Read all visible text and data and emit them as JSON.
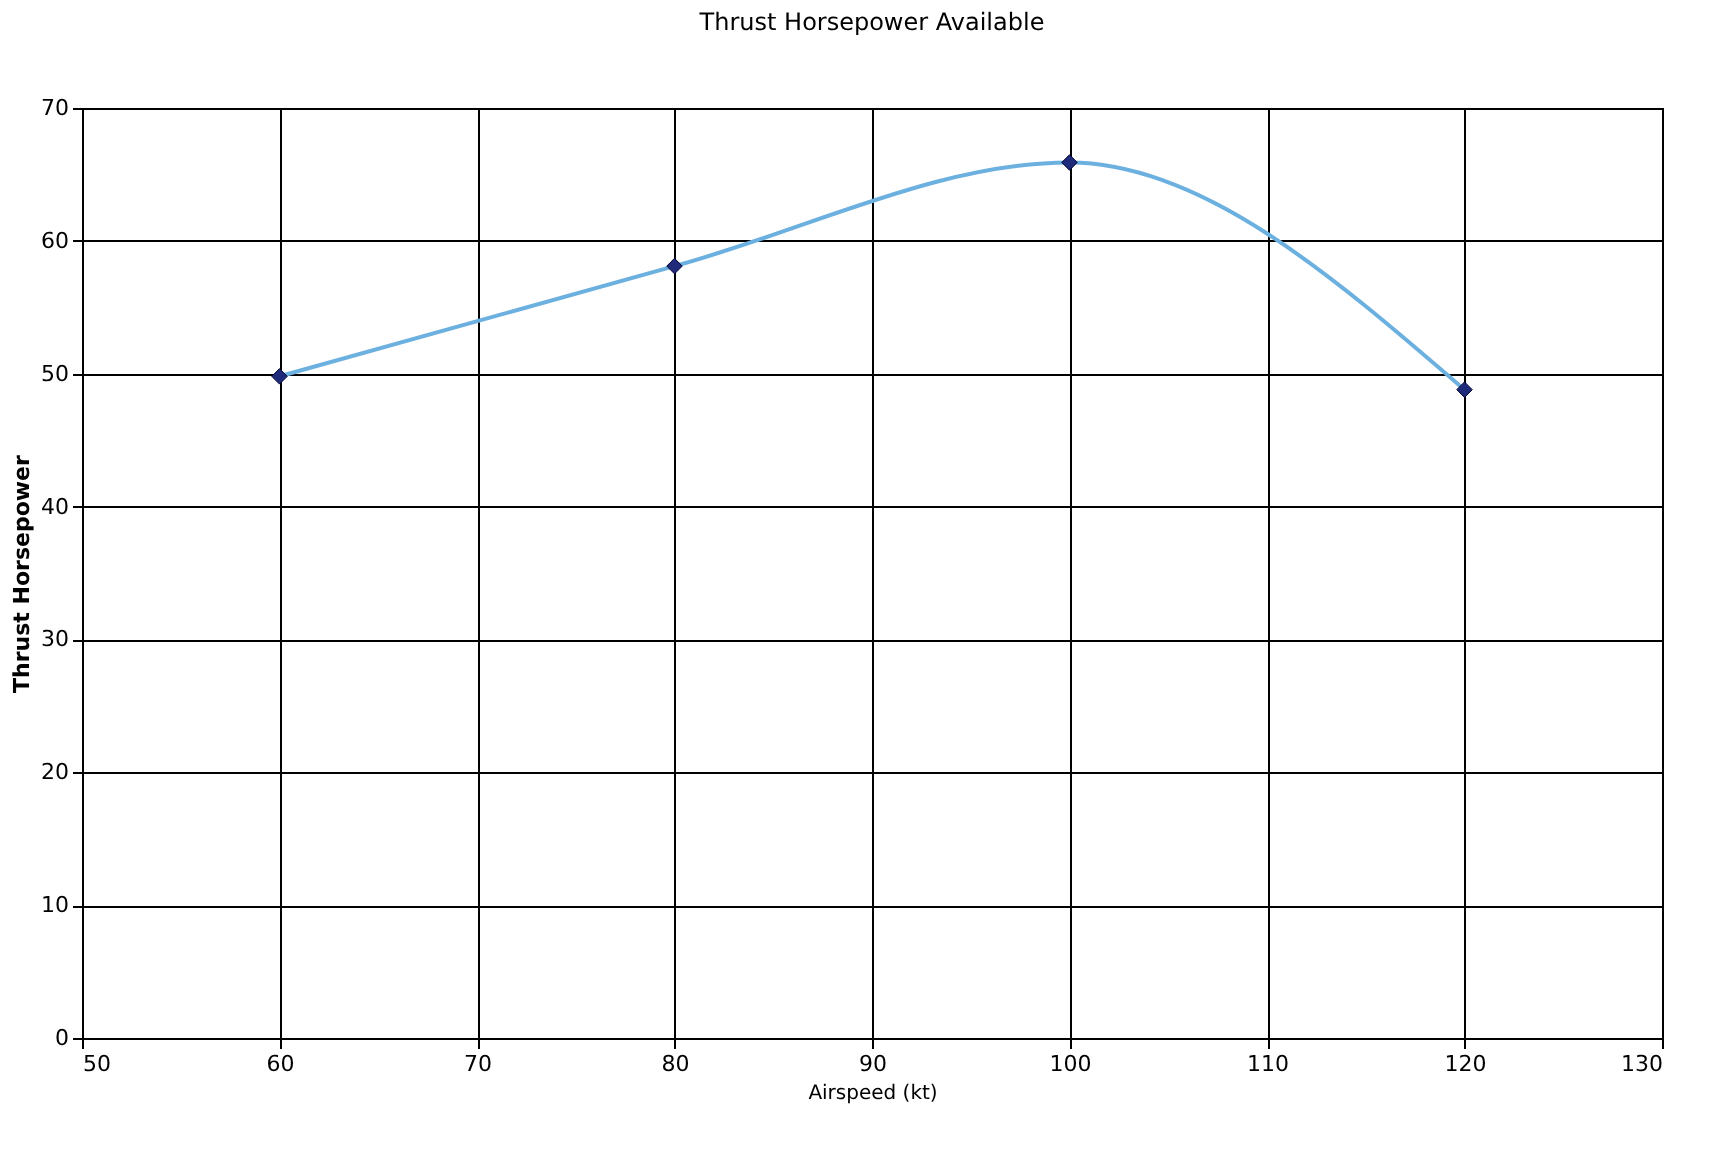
{
  "chart_data": {
    "type": "line",
    "title": "Thrust Horsepower Available",
    "xlabel": "Airspeed (kt)",
    "ylabel": "Thrust Horsepower",
    "x": [
      60,
      80,
      100,
      120
    ],
    "series": [
      {
        "color": "#6cb0e0",
        "values": [
          49.8,
          58.1,
          65.9,
          48.8
        ]
      }
    ],
    "marker": "diamond",
    "line_style": "solid",
    "xlim": [
      50,
      130
    ],
    "xticks": [
      50,
      60,
      70,
      80,
      90,
      100,
      110,
      120,
      130
    ],
    "ylim": [
      0,
      70
    ],
    "yticks": [
      0,
      10,
      20,
      30,
      40,
      50,
      60,
      70
    ],
    "grid": true
  }
}
